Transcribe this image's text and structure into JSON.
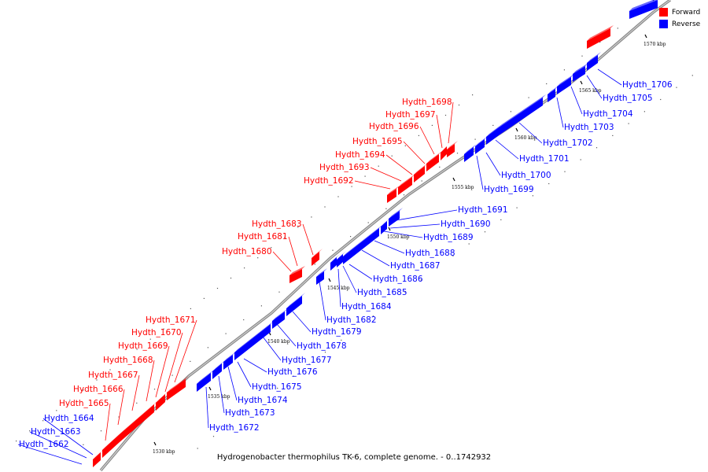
{
  "legend": {
    "forward_label": "Forward",
    "reverse_label": "Reverse",
    "forward_color": "#ff0000",
    "reverse_color": "#0000ff"
  },
  "caption": "Hydrogenobacter thermophilus TK-6, complete genome. - 0..1742932",
  "axis": {
    "ticks": [
      "1530 kbp",
      "1535 kbp",
      "1540 kbp",
      "1545 kbp",
      "1550 kbp",
      "1555 kbp",
      "1560 kbp",
      "1565 kbp",
      "1570 kbp"
    ]
  },
  "genes": {
    "forward": [
      "Hydth_1665",
      "Hydth_1666",
      "Hydth_1667",
      "Hydth_1668",
      "Hydth_1669",
      "Hydth_1670",
      "Hydth_1671",
      "Hydth_1680",
      "Hydth_1681",
      "Hydth_1683",
      "Hydth_1692",
      "Hydth_1693",
      "Hydth_1694",
      "Hydth_1695",
      "Hydth_1696",
      "Hydth_1697",
      "Hydth_1698"
    ],
    "reverse": [
      "Hydth_1662",
      "Hydth_1663",
      "Hydth_1664",
      "Hydth_1672",
      "Hydth_1673",
      "Hydth_1674",
      "Hydth_1675",
      "Hydth_1676",
      "Hydth_1677",
      "Hydth_1678",
      "Hydth_1679",
      "Hydth_1682",
      "Hydth_1684",
      "Hydth_1685",
      "Hydth_1686",
      "Hydth_1687",
      "Hydth_1688",
      "Hydth_1689",
      "Hydth_1690",
      "Hydth_1691",
      "Hydth_1699",
      "Hydth_1700",
      "Hydth_1701",
      "Hydth_1702",
      "Hydth_1703",
      "Hydth_1704",
      "Hydth_1705",
      "Hydth_1706"
    ]
  }
}
